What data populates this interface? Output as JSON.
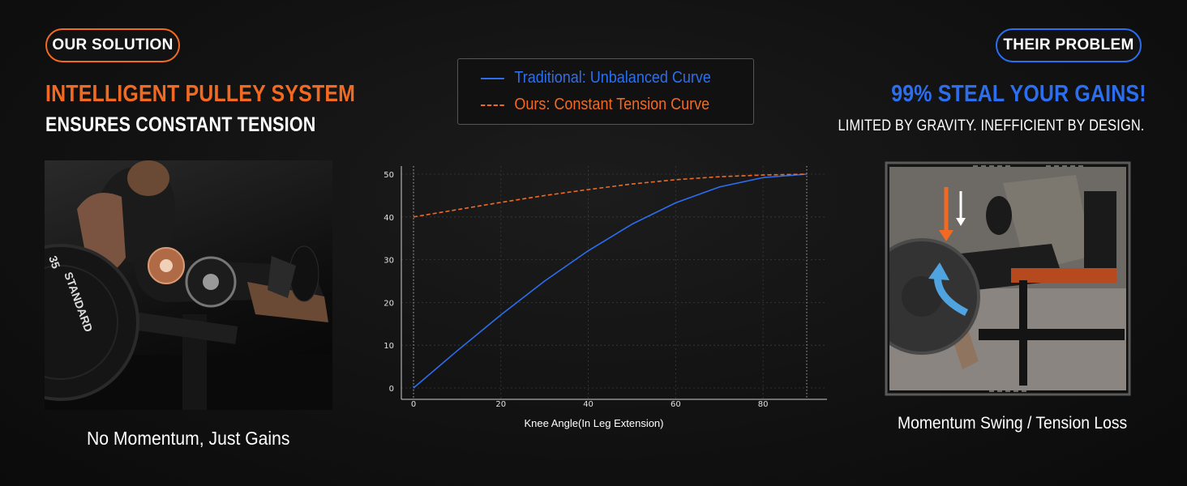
{
  "left": {
    "badge": "OUR SOLUTION",
    "headline_1": "INTELLIGENT PULLEY SYSTEM",
    "headline_2": "ENSURES CONSTANT TENSION",
    "caption": "No Momentum, Just Gains"
  },
  "right": {
    "badge": "THEIR PROBLEM",
    "headline_1": "99% STEAL YOUR GAINS!",
    "headline_2": "LIMITED BY GRAVITY. INEFFICIENT BY DESIGN.",
    "caption": "Momentum Swing / Tension Loss"
  },
  "colors": {
    "accent_orange": "#f26a21",
    "accent_blue": "#2b6ff0"
  },
  "icons": [
    "weight-plate-icon",
    "down-arrow-icon",
    "curved-arrow-icon"
  ],
  "plate_text": [
    "35",
    "STANDARD"
  ],
  "chart_data": {
    "type": "line",
    "xlabel": "Knee Angle(In Leg Extension)",
    "ylabel": "",
    "xlim": [
      0,
      90
    ],
    "ylim": [
      0,
      50
    ],
    "xticks": [
      0,
      20,
      40,
      60,
      80
    ],
    "yticks": [
      0,
      10,
      20,
      30,
      40,
      50
    ],
    "grid": true,
    "legend": "top",
    "series": [
      {
        "name": "Traditional: Unbalanced Curve",
        "color": "#2b6ff0",
        "style": "solid",
        "x": [
          0,
          10,
          20,
          30,
          40,
          50,
          60,
          70,
          80,
          90
        ],
        "y": [
          0,
          8.7,
          17.1,
          25,
          32.1,
          38.3,
          43.3,
          47,
          49.2,
          50
        ]
      },
      {
        "name": "Ours: Constant Tension Curve",
        "color": "#f26a21",
        "style": "dashed",
        "x": [
          0,
          10,
          20,
          30,
          40,
          50,
          60,
          70,
          80,
          90
        ],
        "y": [
          40,
          41.7,
          43.4,
          45,
          46.4,
          47.7,
          48.7,
          49.4,
          49.8,
          50
        ]
      }
    ]
  }
}
